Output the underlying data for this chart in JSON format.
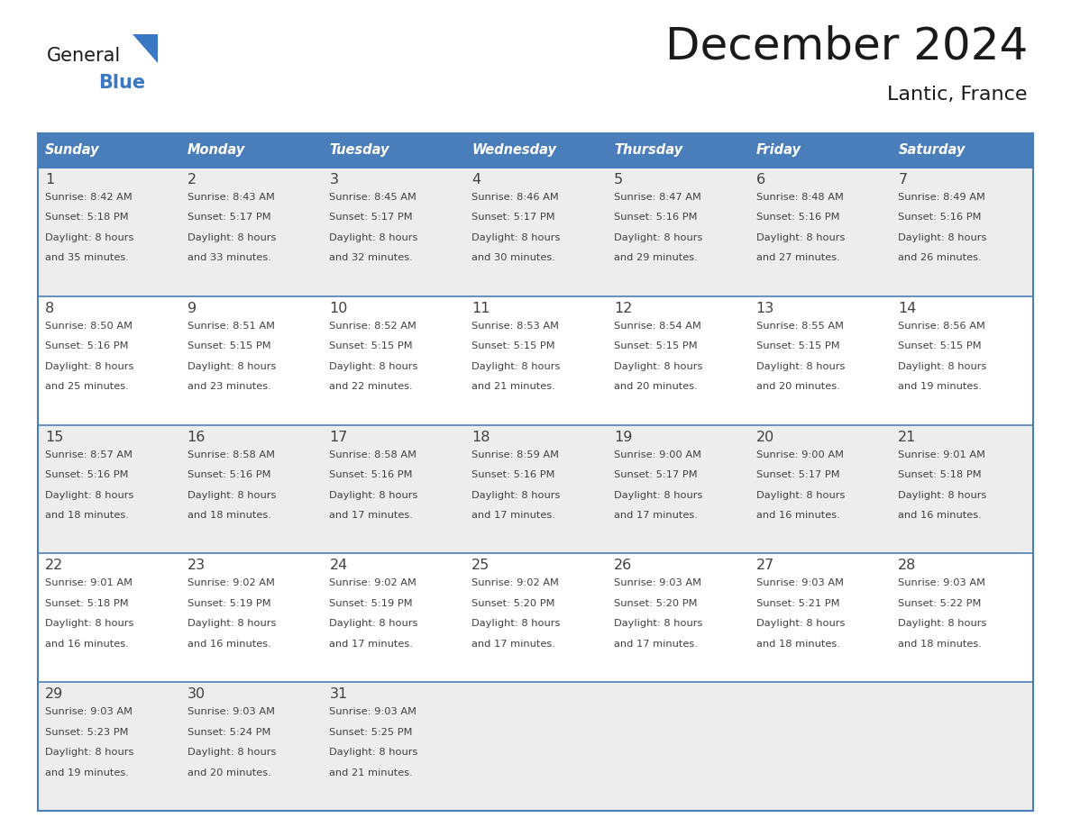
{
  "title": "December 2024",
  "subtitle": "Lantic, France",
  "header_color": "#4A7EBB",
  "header_text_color": "#FFFFFF",
  "day_names": [
    "Sunday",
    "Monday",
    "Tuesday",
    "Wednesday",
    "Thursday",
    "Friday",
    "Saturday"
  ],
  "bg_color": "#FFFFFF",
  "cell_bg_even": "#EDEDED",
  "cell_bg_odd": "#FFFFFF",
  "border_color": "#4A7EBB",
  "text_color": "#404040",
  "days": [
    {
      "day": 1,
      "col": 0,
      "row": 0,
      "sunrise": "8:42 AM",
      "sunset": "5:18 PM",
      "daylight": "8 hours",
      "daylight2": "and 35 minutes."
    },
    {
      "day": 2,
      "col": 1,
      "row": 0,
      "sunrise": "8:43 AM",
      "sunset": "5:17 PM",
      "daylight": "8 hours",
      "daylight2": "and 33 minutes."
    },
    {
      "day": 3,
      "col": 2,
      "row": 0,
      "sunrise": "8:45 AM",
      "sunset": "5:17 PM",
      "daylight": "8 hours",
      "daylight2": "and 32 minutes."
    },
    {
      "day": 4,
      "col": 3,
      "row": 0,
      "sunrise": "8:46 AM",
      "sunset": "5:17 PM",
      "daylight": "8 hours",
      "daylight2": "and 30 minutes."
    },
    {
      "day": 5,
      "col": 4,
      "row": 0,
      "sunrise": "8:47 AM",
      "sunset": "5:16 PM",
      "daylight": "8 hours",
      "daylight2": "and 29 minutes."
    },
    {
      "day": 6,
      "col": 5,
      "row": 0,
      "sunrise": "8:48 AM",
      "sunset": "5:16 PM",
      "daylight": "8 hours",
      "daylight2": "and 27 minutes."
    },
    {
      "day": 7,
      "col": 6,
      "row": 0,
      "sunrise": "8:49 AM",
      "sunset": "5:16 PM",
      "daylight": "8 hours",
      "daylight2": "and 26 minutes."
    },
    {
      "day": 8,
      "col": 0,
      "row": 1,
      "sunrise": "8:50 AM",
      "sunset": "5:16 PM",
      "daylight": "8 hours",
      "daylight2": "and 25 minutes."
    },
    {
      "day": 9,
      "col": 1,
      "row": 1,
      "sunrise": "8:51 AM",
      "sunset": "5:15 PM",
      "daylight": "8 hours",
      "daylight2": "and 23 minutes."
    },
    {
      "day": 10,
      "col": 2,
      "row": 1,
      "sunrise": "8:52 AM",
      "sunset": "5:15 PM",
      "daylight": "8 hours",
      "daylight2": "and 22 minutes."
    },
    {
      "day": 11,
      "col": 3,
      "row": 1,
      "sunrise": "8:53 AM",
      "sunset": "5:15 PM",
      "daylight": "8 hours",
      "daylight2": "and 21 minutes."
    },
    {
      "day": 12,
      "col": 4,
      "row": 1,
      "sunrise": "8:54 AM",
      "sunset": "5:15 PM",
      "daylight": "8 hours",
      "daylight2": "and 20 minutes."
    },
    {
      "day": 13,
      "col": 5,
      "row": 1,
      "sunrise": "8:55 AM",
      "sunset": "5:15 PM",
      "daylight": "8 hours",
      "daylight2": "and 20 minutes."
    },
    {
      "day": 14,
      "col": 6,
      "row": 1,
      "sunrise": "8:56 AM",
      "sunset": "5:15 PM",
      "daylight": "8 hours",
      "daylight2": "and 19 minutes."
    },
    {
      "day": 15,
      "col": 0,
      "row": 2,
      "sunrise": "8:57 AM",
      "sunset": "5:16 PM",
      "daylight": "8 hours",
      "daylight2": "and 18 minutes."
    },
    {
      "day": 16,
      "col": 1,
      "row": 2,
      "sunrise": "8:58 AM",
      "sunset": "5:16 PM",
      "daylight": "8 hours",
      "daylight2": "and 18 minutes."
    },
    {
      "day": 17,
      "col": 2,
      "row": 2,
      "sunrise": "8:58 AM",
      "sunset": "5:16 PM",
      "daylight": "8 hours",
      "daylight2": "and 17 minutes."
    },
    {
      "day": 18,
      "col": 3,
      "row": 2,
      "sunrise": "8:59 AM",
      "sunset": "5:16 PM",
      "daylight": "8 hours",
      "daylight2": "and 17 minutes."
    },
    {
      "day": 19,
      "col": 4,
      "row": 2,
      "sunrise": "9:00 AM",
      "sunset": "5:17 PM",
      "daylight": "8 hours",
      "daylight2": "and 17 minutes."
    },
    {
      "day": 20,
      "col": 5,
      "row": 2,
      "sunrise": "9:00 AM",
      "sunset": "5:17 PM",
      "daylight": "8 hours",
      "daylight2": "and 16 minutes."
    },
    {
      "day": 21,
      "col": 6,
      "row": 2,
      "sunrise": "9:01 AM",
      "sunset": "5:18 PM",
      "daylight": "8 hours",
      "daylight2": "and 16 minutes."
    },
    {
      "day": 22,
      "col": 0,
      "row": 3,
      "sunrise": "9:01 AM",
      "sunset": "5:18 PM",
      "daylight": "8 hours",
      "daylight2": "and 16 minutes."
    },
    {
      "day": 23,
      "col": 1,
      "row": 3,
      "sunrise": "9:02 AM",
      "sunset": "5:19 PM",
      "daylight": "8 hours",
      "daylight2": "and 16 minutes."
    },
    {
      "day": 24,
      "col": 2,
      "row": 3,
      "sunrise": "9:02 AM",
      "sunset": "5:19 PM",
      "daylight": "8 hours",
      "daylight2": "and 17 minutes."
    },
    {
      "day": 25,
      "col": 3,
      "row": 3,
      "sunrise": "9:02 AM",
      "sunset": "5:20 PM",
      "daylight": "8 hours",
      "daylight2": "and 17 minutes."
    },
    {
      "day": 26,
      "col": 4,
      "row": 3,
      "sunrise": "9:03 AM",
      "sunset": "5:20 PM",
      "daylight": "8 hours",
      "daylight2": "and 17 minutes."
    },
    {
      "day": 27,
      "col": 5,
      "row": 3,
      "sunrise": "9:03 AM",
      "sunset": "5:21 PM",
      "daylight": "8 hours",
      "daylight2": "and 18 minutes."
    },
    {
      "day": 28,
      "col": 6,
      "row": 3,
      "sunrise": "9:03 AM",
      "sunset": "5:22 PM",
      "daylight": "8 hours",
      "daylight2": "and 18 minutes."
    },
    {
      "day": 29,
      "col": 0,
      "row": 4,
      "sunrise": "9:03 AM",
      "sunset": "5:23 PM",
      "daylight": "8 hours",
      "daylight2": "and 19 minutes."
    },
    {
      "day": 30,
      "col": 1,
      "row": 4,
      "sunrise": "9:03 AM",
      "sunset": "5:24 PM",
      "daylight": "8 hours",
      "daylight2": "and 20 minutes."
    },
    {
      "day": 31,
      "col": 2,
      "row": 4,
      "sunrise": "9:03 AM",
      "sunset": "5:25 PM",
      "daylight": "8 hours",
      "daylight2": "and 21 minutes."
    }
  ]
}
